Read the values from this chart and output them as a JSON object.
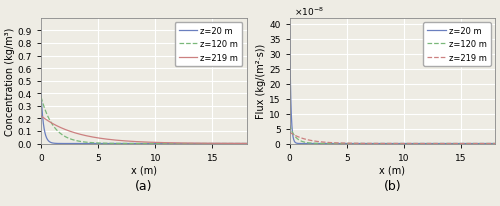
{
  "title_a": "(a)",
  "title_b": "(b)",
  "xlabel": "x (m)",
  "ylabel_a": "Concentration (kg/m³)",
  "ylabel_b": "Flux (kg/(m²·s))",
  "xlim": [
    0,
    18
  ],
  "xticks": [
    0,
    5,
    10,
    15
  ],
  "ylim_a": [
    0,
    1.0
  ],
  "yticks_a": [
    0.0,
    0.1,
    0.2,
    0.3,
    0.4,
    0.5,
    0.6,
    0.7,
    0.8,
    0.9
  ],
  "ylim_b": [
    0,
    42
  ],
  "yticks_b": [
    0,
    5,
    10,
    15,
    20,
    25,
    30,
    35,
    40
  ],
  "flux_exponent": -8,
  "legend_labels": [
    "z=20 m",
    "z=120 m",
    "z=219 m"
  ],
  "colors": [
    "#6a7fbf",
    "#7ab87a",
    "#cc8080"
  ],
  "linestyles_a": [
    "-",
    "--",
    "-"
  ],
  "linestyles_b": [
    "-",
    "--",
    "--"
  ],
  "background_color": "#eeece4",
  "grid_color": "#ffffff",
  "conc_params": [
    {
      "A": 0.4,
      "k": 4.5
    },
    {
      "A": 0.37,
      "k": 0.9
    },
    {
      "A": 0.22,
      "k": 0.32
    }
  ],
  "flux_params": [
    {
      "A": 40.0,
      "k": 9.5
    },
    {
      "A": 6.2,
      "k": 2.0
    },
    {
      "A": 3.8,
      "k": 0.7
    }
  ],
  "figsize": [
    5.0,
    2.07
  ],
  "dpi": 100
}
